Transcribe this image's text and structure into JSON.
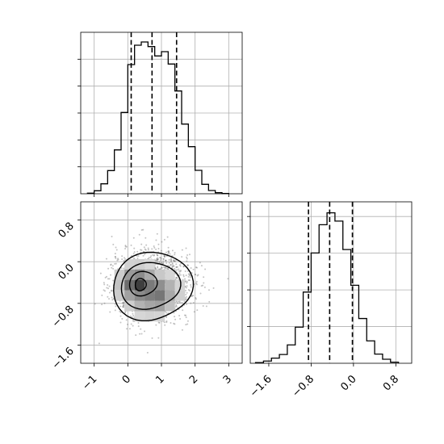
{
  "chart_data": [
    {
      "panel": "top-histogram",
      "type": "histogram",
      "variable": "x",
      "xlim": [
        -1.4,
        3.4
      ],
      "grid": true,
      "bin_edges": [
        -1.2,
        -1.0,
        -0.8,
        -0.6,
        -0.4,
        -0.2,
        0.0,
        0.2,
        0.4,
        0.6,
        0.8,
        1.0,
        1.2,
        1.4,
        1.6,
        1.8,
        2.0,
        2.2,
        2.4,
        2.6,
        2.8,
        3.0
      ],
      "counts": [
        2,
        11,
        37,
        86,
        163,
        302,
        480,
        552,
        564,
        547,
        512,
        528,
        482,
        382,
        259,
        175,
        87,
        35,
        12,
        4,
        1
      ],
      "ylim": [
        0,
        600
      ],
      "quantile_lines": [
        0.1,
        0.72,
        1.45
      ],
      "xticks": [
        "−1",
        "0",
        "1",
        "2",
        "3"
      ]
    },
    {
      "panel": "2d-density",
      "type": "contour",
      "x_variable": "x",
      "y_variable": "y",
      "xlim": [
        -1.4,
        3.4
      ],
      "ylim": [
        -1.95,
        1.15
      ],
      "grid": true,
      "xticks": [
        "−1",
        "0",
        "1",
        "2",
        "3"
      ],
      "yticks": [
        "0.8",
        "0.0",
        "−0.8",
        "−1.6"
      ],
      "contour_levels": [
        0.39,
        0.86,
        0.99
      ],
      "peak": [
        0.4,
        -0.45
      ]
    },
    {
      "panel": "right-histogram",
      "type": "histogram",
      "variable": "y",
      "xlim": [
        -1.95,
        1.1
      ],
      "grid": true,
      "bin_edges": [
        -1.85,
        -1.7,
        -1.55,
        -1.4,
        -1.25,
        -1.1,
        -0.95,
        -0.8,
        -0.65,
        -0.5,
        -0.35,
        -0.2,
        -0.05,
        0.1,
        0.25,
        0.4,
        0.55,
        0.7,
        0.85
      ],
      "counts": [
        4,
        12,
        28,
        48,
        100,
        197,
        388,
        601,
        755,
        820,
        775,
        620,
        425,
        244,
        122,
        50,
        22,
        6
      ],
      "ylim": [
        0,
        880
      ],
      "quantile_lines": [
        -0.85,
        -0.45,
        -0.02
      ],
      "xticks": [
        "−1.6",
        "−0.8",
        "0.0",
        "0.8"
      ]
    }
  ]
}
